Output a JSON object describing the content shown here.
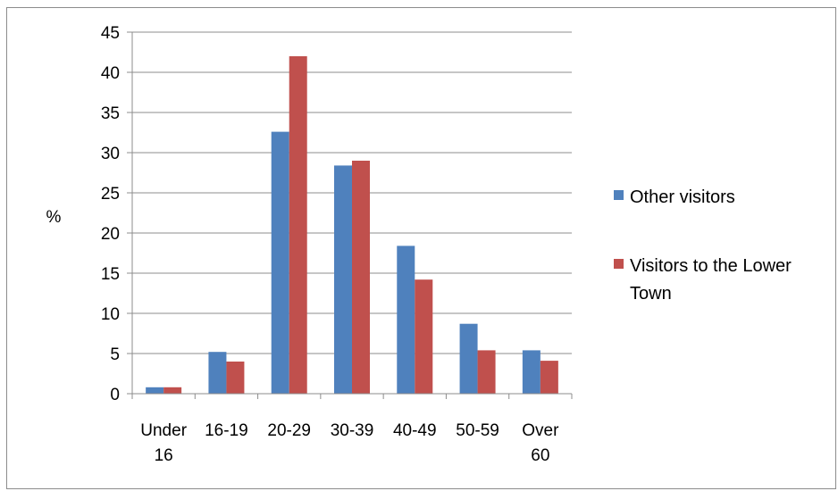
{
  "chart_data": {
    "type": "bar",
    "title": "",
    "xlabel": "",
    "ylabel": "%",
    "ylim": [
      0,
      45
    ],
    "yticks": [
      0,
      5,
      10,
      15,
      20,
      25,
      30,
      35,
      40,
      45
    ],
    "grid": true,
    "legend_position": "right",
    "categories": [
      [
        "Under",
        "16"
      ],
      [
        "16-19"
      ],
      [
        "20-29"
      ],
      [
        "30-39"
      ],
      [
        "40-49"
      ],
      [
        "50-59"
      ],
      [
        "Over",
        "60"
      ]
    ],
    "series": [
      {
        "name": [
          "Other visitors"
        ],
        "color": "#4f81bd",
        "values": [
          0.8,
          5.2,
          32.6,
          28.4,
          18.4,
          8.7,
          5.4
        ]
      },
      {
        "name": [
          "Visitors to the Lower",
          "Town"
        ],
        "color": "#c0504d",
        "values": [
          0.8,
          4.0,
          42.0,
          29.0,
          14.2,
          5.4,
          4.1
        ]
      }
    ]
  }
}
